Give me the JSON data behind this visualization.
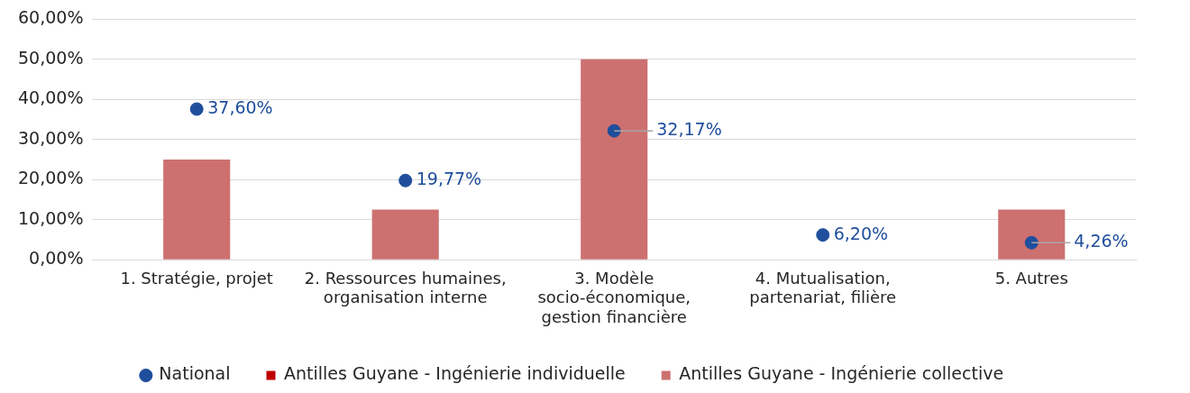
{
  "chart_data": {
    "type": "bar",
    "categories": [
      "1. Stratégie, projet",
      "2. Ressources humaines, organisation interne",
      "3. Modèle socio-économique, gestion financière",
      "4. Mutualisation, partenariat, filière",
      "5. Autres"
    ],
    "series": [
      {
        "name": "Antilles Guyane - Ingénierie individuelle",
        "color": "#c00000",
        "values": [
          0,
          0,
          0,
          0,
          0
        ]
      },
      {
        "name": "Antilles Guyane - Ingénierie collective",
        "color": "#cd7070",
        "values": [
          25,
          12.5,
          50,
          0,
          12.5
        ]
      },
      {
        "name": "National",
        "type": "scatter",
        "color": "#1f4e9c",
        "values": [
          37.6,
          19.77,
          32.17,
          6.2,
          4.26
        ],
        "value_labels": [
          "37,60%",
          "19,77%",
          "32,17%",
          "6,20%",
          "4,26%"
        ]
      }
    ],
    "ylim": [
      0,
      60
    ],
    "yticks": [
      {
        "value": 0,
        "label": "0,00%"
      },
      {
        "value": 10,
        "label": "10,00%"
      },
      {
        "value": 20,
        "label": "20,00%"
      },
      {
        "value": 30,
        "label": "30,00%"
      },
      {
        "value": 40,
        "label": "40,00%"
      },
      {
        "value": 50,
        "label": "50,00%"
      },
      {
        "value": 60,
        "label": "60,00%"
      }
    ],
    "grid": "y",
    "legend": "bottom",
    "marker": "circle"
  }
}
